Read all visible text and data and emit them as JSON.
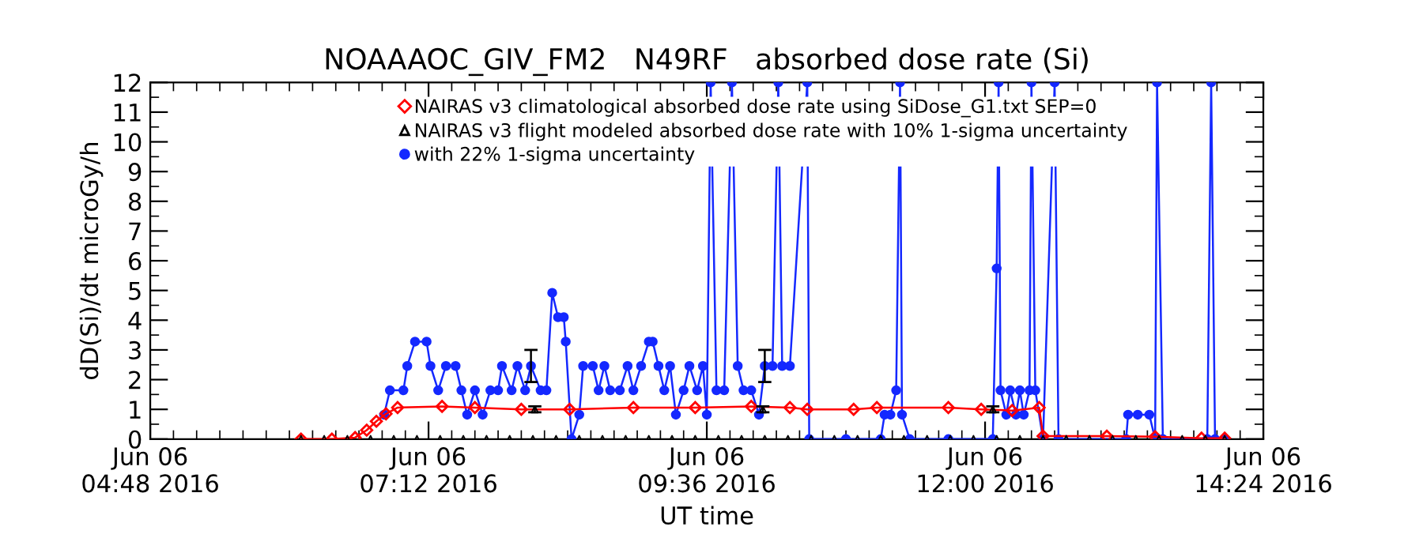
{
  "chart_data": {
    "type": "line",
    "title": "NOAAAOC_GIV_FM2   N49RF   absorbed dose rate (Si)",
    "xlabel": "UT time",
    "ylabel": "dD(Si)/dt microGy/h",
    "xlim": [
      "2016-06-06T04:48",
      "2016-06-06T14:24"
    ],
    "xticks": [
      {
        "value": "2016-06-06T04:48",
        "label": "Jun 06\n04:48 2016"
      },
      {
        "value": "2016-06-06T07:12",
        "label": "Jun 06\n07:12 2016"
      },
      {
        "value": "2016-06-06T09:36",
        "label": "Jun 06\n09:36 2016"
      },
      {
        "value": "2016-06-06T12:00",
        "label": "Jun 06\n12:00 2016"
      },
      {
        "value": "2016-06-06T14:24",
        "label": "Jun 06\n14:24 2016"
      }
    ],
    "ylim": [
      0,
      12
    ],
    "yticks": [
      0,
      1,
      2,
      3,
      4,
      5,
      6,
      7,
      8,
      9,
      10,
      11,
      12
    ],
    "legend": "top",
    "series": [
      {
        "name": "NAIRAS v3 climatological absorbed dose rate using SiDose_G1.txt SEP=0",
        "marker": "diamond",
        "line_style": "solid",
        "color": "#ff0000",
        "x": [
          "2016-06-06T06:06",
          "2016-06-06T06:22",
          "2016-06-06T06:34",
          "2016-06-06T06:40",
          "2016-06-06T06:45",
          "2016-06-06T06:50",
          "2016-06-06T06:56",
          "2016-06-06T07:19",
          "2016-06-06T07:36",
          "2016-06-06T08:00",
          "2016-06-06T08:25",
          "2016-06-06T08:58",
          "2016-06-06T09:30",
          "2016-06-06T09:59",
          "2016-06-06T10:19",
          "2016-06-06T10:28",
          "2016-06-06T10:52",
          "2016-06-06T11:04",
          "2016-06-06T11:41",
          "2016-06-06T11:58",
          "2016-06-06T12:14",
          "2016-06-06T12:28",
          "2016-06-06T12:30",
          "2016-06-06T13:03",
          "2016-06-06T13:28",
          "2016-06-06T13:52",
          "2016-06-06T14:04"
        ],
        "values": [
          0,
          0,
          0.05,
          0.3,
          0.6,
          0.85,
          1.06,
          1.1,
          1.06,
          1.0,
          1.0,
          1.06,
          1.06,
          1.1,
          1.06,
          1.0,
          1.0,
          1.06,
          1.06,
          1.0,
          0.96,
          1.06,
          0.1,
          0.1,
          0.08,
          0.03,
          0.03
        ]
      },
      {
        "name": "NAIRAS v3 flight modeled absorbed dose rate with 10% 1-sigma uncertainty",
        "type": "scatter",
        "marker": "triangle",
        "color": "#000000",
        "x": [
          "2016-06-06T06:06",
          "2016-06-06T06:18",
          "2016-06-06T06:30",
          "2016-06-06T06:42",
          "2016-06-06T06:54",
          "2016-06-06T07:06",
          "2016-06-06T07:18",
          "2016-06-06T07:30",
          "2016-06-06T07:42",
          "2016-06-06T07:54",
          "2016-06-06T08:06",
          "2016-06-06T08:18",
          "2016-06-06T08:30",
          "2016-06-06T08:42",
          "2016-06-06T08:54",
          "2016-06-06T09:06",
          "2016-06-06T09:18",
          "2016-06-06T09:30",
          "2016-06-06T09:42",
          "2016-06-06T09:54",
          "2016-06-06T10:06",
          "2016-06-06T10:18",
          "2016-06-06T10:30",
          "2016-06-06T10:42",
          "2016-06-06T10:54",
          "2016-06-06T11:06",
          "2016-06-06T11:18",
          "2016-06-06T11:30",
          "2016-06-06T11:42",
          "2016-06-06T11:54",
          "2016-06-06T12:06",
          "2016-06-06T12:18",
          "2016-06-06T12:30",
          "2016-06-06T12:42",
          "2016-06-06T12:54",
          "2016-06-06T13:06",
          "2016-06-06T13:18",
          "2016-06-06T13:30",
          "2016-06-06T13:42",
          "2016-06-06T13:54",
          "2016-06-06T14:04",
          "2016-06-06T08:07",
          "2016-06-06T10:05",
          "2016-06-06T12:04"
        ],
        "values": [
          0,
          0,
          0,
          0,
          0,
          0,
          0,
          0,
          0,
          0,
          0,
          0,
          0,
          0,
          0,
          0,
          0,
          0,
          0,
          0,
          0,
          0,
          0,
          0,
          0,
          0,
          0,
          0,
          0,
          0,
          0,
          0,
          0,
          0,
          0,
          0,
          0,
          0,
          0,
          0,
          0,
          1.0,
          1.0,
          1.0
        ],
        "errors": [
          null,
          null,
          null,
          null,
          null,
          null,
          null,
          null,
          null,
          null,
          null,
          null,
          null,
          null,
          null,
          null,
          null,
          null,
          null,
          null,
          null,
          null,
          null,
          null,
          null,
          null,
          null,
          null,
          null,
          null,
          null,
          null,
          null,
          null,
          null,
          null,
          null,
          null,
          null,
          null,
          null,
          0.1,
          0.1,
          0.1
        ]
      },
      {
        "name": "with 22% 1-sigma uncertainty",
        "marker": "circle",
        "line_style": "solid",
        "color": "#1428ff",
        "x": [
          "2016-06-06T06:49",
          "2016-06-06T06:52",
          "2016-06-06T06:59",
          "2016-06-06T07:01",
          "2016-06-06T07:05",
          "2016-06-06T07:11",
          "2016-06-06T07:13",
          "2016-06-06T07:17",
          "2016-06-06T07:21",
          "2016-06-06T07:26",
          "2016-06-06T07:29",
          "2016-06-06T07:32",
          "2016-06-06T07:36",
          "2016-06-06T07:40",
          "2016-06-06T07:44",
          "2016-06-06T07:48",
          "2016-06-06T07:50",
          "2016-06-06T07:55",
          "2016-06-06T07:58",
          "2016-06-06T08:02",
          "2016-06-06T08:05",
          "2016-06-06T08:10",
          "2016-06-06T08:13",
          "2016-06-06T08:16",
          "2016-06-06T08:19",
          "2016-06-06T08:22",
          "2016-06-06T08:23",
          "2016-06-06T08:26",
          "2016-06-06T08:30",
          "2016-06-06T08:32",
          "2016-06-06T08:37",
          "2016-06-06T08:40",
          "2016-06-06T08:43",
          "2016-06-06T08:46",
          "2016-06-06T08:51",
          "2016-06-06T08:55",
          "2016-06-06T08:58",
          "2016-06-06T09:02",
          "2016-06-06T09:06",
          "2016-06-06T09:08",
          "2016-06-06T09:11",
          "2016-06-06T09:14",
          "2016-06-06T09:17",
          "2016-06-06T09:20",
          "2016-06-06T09:24",
          "2016-06-06T09:27",
          "2016-06-06T09:31",
          "2016-06-06T09:34",
          "2016-06-06T09:36",
          "2016-06-06T09:38",
          "2016-06-06T09:41",
          "2016-06-06T09:45",
          "2016-06-06T09:49",
          "2016-06-06T09:52",
          "2016-06-06T09:55",
          "2016-06-06T09:59",
          "2016-06-06T10:03",
          "2016-06-06T10:06",
          "2016-06-06T10:10",
          "2016-06-06T10:13",
          "2016-06-06T10:15",
          "2016-06-06T10:19",
          "2016-06-06T10:28",
          "2016-06-06T10:29",
          "2016-06-06T10:48",
          "2016-06-06T11:06",
          "2016-06-06T11:08",
          "2016-06-06T11:11",
          "2016-06-06T11:14",
          "2016-06-06T11:16",
          "2016-06-06T11:17",
          "2016-06-06T11:21",
          "2016-06-06T11:41",
          "2016-06-06T12:04",
          "2016-06-06T12:06",
          "2016-06-06T12:07",
          "2016-06-06T12:08",
          "2016-06-06T12:11",
          "2016-06-06T12:13",
          "2016-06-06T12:16",
          "2016-06-06T12:18",
          "2016-06-06T12:20",
          "2016-06-06T12:23",
          "2016-06-06T12:24",
          "2016-06-06T12:26",
          "2016-06-06T12:30",
          "2016-06-06T12:36",
          "2016-06-06T12:38",
          "2016-06-06T13:13",
          "2016-06-06T13:14",
          "2016-06-06T13:19",
          "2016-06-06T13:25",
          "2016-06-06T13:28",
          "2016-06-06T13:29",
          "2016-06-06T13:32",
          "2016-06-06T13:55",
          "2016-06-06T13:57",
          "2016-06-06T13:59",
          "2016-06-06T14:04"
        ],
        "values": [
          0.82,
          1.64,
          1.64,
          2.46,
          3.28,
          3.28,
          2.46,
          1.64,
          2.46,
          2.46,
          1.64,
          0.82,
          1.64,
          0.82,
          1.64,
          1.64,
          2.46,
          1.64,
          2.46,
          1.64,
          2.46,
          1.64,
          1.64,
          4.92,
          4.1,
          4.1,
          3.28,
          0,
          0.82,
          2.46,
          2.46,
          1.64,
          2.46,
          1.64,
          1.64,
          2.46,
          1.64,
          2.46,
          3.28,
          3.28,
          2.46,
          1.64,
          2.46,
          0.82,
          1.64,
          2.46,
          1.64,
          2.46,
          0.82,
          12,
          1.64,
          1.64,
          12,
          2.46,
          1.64,
          1.64,
          0.82,
          2.46,
          2.46,
          12,
          2.46,
          2.46,
          12,
          0,
          0,
          0,
          0.82,
          0.82,
          1.64,
          12,
          0.82,
          0,
          0,
          0,
          5.74,
          12,
          1.64,
          0.82,
          1.64,
          0.82,
          1.64,
          0.82,
          1.64,
          12,
          1.64,
          0,
          12,
          0,
          0,
          0.82,
          0.82,
          0.82,
          0,
          12,
          0,
          0,
          12,
          0,
          0
        ],
        "errors": [
          null,
          null,
          null,
          null,
          null,
          null,
          null,
          null,
          null,
          null,
          null,
          null,
          null,
          null,
          null,
          null,
          null,
          null,
          null,
          null,
          0.54,
          null,
          null,
          null,
          null,
          null,
          null,
          null,
          null,
          null,
          null,
          null,
          null,
          null,
          null,
          null,
          null,
          null,
          null,
          null,
          null,
          null,
          null,
          null,
          null,
          null,
          null,
          null,
          null,
          null,
          null,
          null,
          null,
          null,
          null,
          null,
          null,
          0.54,
          null,
          null,
          null,
          null,
          null,
          null,
          null,
          null,
          null,
          null,
          null,
          null,
          null,
          null,
          null,
          null,
          null,
          null,
          null,
          null,
          null,
          null,
          null,
          null,
          null,
          null,
          null,
          null,
          null,
          null,
          null,
          null,
          null,
          null,
          null,
          null,
          null,
          null,
          null,
          null,
          null
        ]
      }
    ]
  }
}
